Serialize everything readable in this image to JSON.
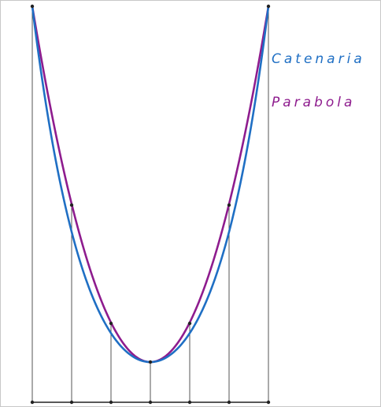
{
  "legend": {
    "catenaria": {
      "label": "Catenaria",
      "color": "#1f6fc4"
    },
    "parabola": {
      "label": "Parabola",
      "color": "#8e1c8e"
    }
  },
  "colors": {
    "guides": "#555555",
    "points": "#222222",
    "baseline": "#222222"
  }
}
